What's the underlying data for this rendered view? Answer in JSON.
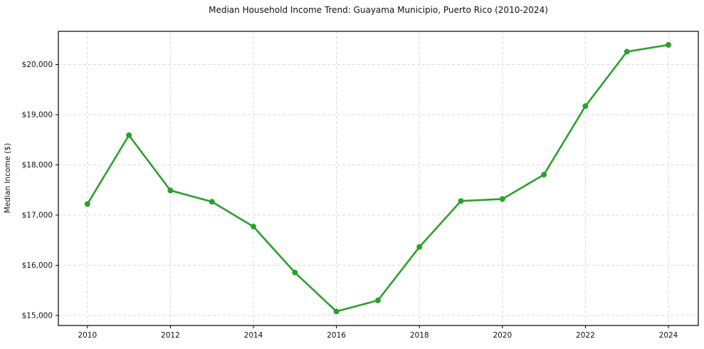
{
  "chart_data": {
    "type": "line",
    "title": "Median Household Income Trend: Guayama Municipio, Puerto Rico (2010-2024)",
    "xlabel": "",
    "ylabel": "Median Income ($)",
    "x": [
      2010,
      2011,
      2012,
      2013,
      2014,
      2015,
      2016,
      2017,
      2018,
      2019,
      2020,
      2021,
      2022,
      2023,
      2024
    ],
    "series": [
      {
        "name": "Median Household Income",
        "values": [
          17220,
          18590,
          17490,
          17265,
          16770,
          15855,
          15080,
          15300,
          16365,
          17280,
          17320,
          17805,
          19170,
          20255,
          20390
        ]
      }
    ],
    "x_ticks": [
      2010,
      2012,
      2014,
      2016,
      2018,
      2020,
      2022,
      2024
    ],
    "x_tick_labels": [
      "2010",
      "2012",
      "2014",
      "2016",
      "2018",
      "2020",
      "2022",
      "2024"
    ],
    "y_ticks": [
      15000,
      16000,
      17000,
      18000,
      19000,
      20000
    ],
    "y_tick_labels": [
      "$15,000",
      "$16,000",
      "$17,000",
      "$18,000",
      "$19,000",
      "$20,000"
    ],
    "xlim": [
      2009.3,
      2024.72
    ],
    "ylim": [
      14800,
      20660
    ],
    "grid": true,
    "grid_style": "dashed",
    "legend": false,
    "marker": "circle"
  },
  "colors": {
    "line": "#2ca02c",
    "marker": "#2ca02c",
    "grid": "#d9d9d9",
    "axis": "#000000",
    "text": "#111111",
    "background": "#ffffff"
  }
}
